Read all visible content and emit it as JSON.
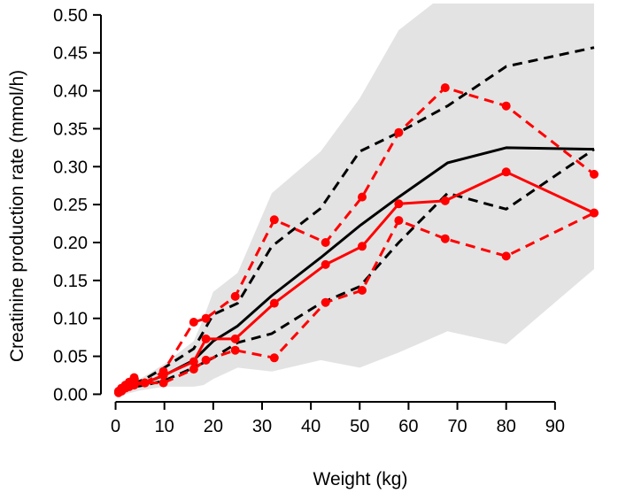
{
  "chart_data": {
    "type": "line",
    "title": "",
    "xlabel": "Weight (kg)",
    "ylabel": "Creatinine production rate (mmol/h)",
    "xlim": [
      -3,
      100
    ],
    "ylim": [
      -0.01,
      0.515
    ],
    "x_ticks": [
      0,
      10,
      20,
      30,
      40,
      50,
      60,
      70,
      80,
      90
    ],
    "y_ticks": [
      0.0,
      0.05,
      0.1,
      0.15,
      0.2,
      0.25,
      0.3,
      0.35,
      0.4,
      0.45,
      0.5
    ],
    "y_tick_labels": [
      "0.00",
      "0.05",
      "0.10",
      "0.15",
      "0.20",
      "0.25",
      "0.30",
      "0.35",
      "0.40",
      "0.45",
      "0.50"
    ],
    "grid": false,
    "legend": "none",
    "colors": {
      "prediction": "#000000",
      "observed": "#ff0000",
      "band": "#e3e3e3"
    },
    "band": {
      "name": "",
      "x": [
        0.8,
        2,
        5,
        10,
        16,
        18,
        20,
        25,
        32,
        42,
        50,
        58,
        68,
        80,
        98
      ],
      "lower": [
        0.0,
        0.0,
        0.005,
        0.01,
        0.01,
        0.012,
        0.02,
        0.035,
        0.03,
        0.045,
        0.035,
        0.055,
        0.083,
        0.066,
        0.165
      ],
      "upper": [
        0.005,
        0.01,
        0.02,
        0.04,
        0.07,
        0.1,
        0.135,
        0.16,
        0.265,
        0.32,
        0.39,
        0.48,
        0.53,
        0.53,
        0.53
      ]
    },
    "series": [
      {
        "role": "predicted-median",
        "style": "solid",
        "color": "#000000",
        "markers": false,
        "x": [
          0.8,
          2,
          4,
          6,
          10,
          16,
          20,
          25,
          32,
          42,
          50,
          58,
          68,
          80,
          98
        ],
        "y": [
          0.003,
          0.006,
          0.01,
          0.015,
          0.025,
          0.045,
          0.07,
          0.09,
          0.13,
          0.18,
          0.222,
          0.26,
          0.305,
          0.325,
          0.323
        ]
      },
      {
        "role": "predicted-upper",
        "style": "dashed",
        "color": "#000000",
        "markers": false,
        "x": [
          0.8,
          2,
          4,
          6,
          10,
          16,
          20,
          25,
          32,
          42,
          50,
          58,
          68,
          80,
          98
        ],
        "y": [
          0.003,
          0.007,
          0.015,
          0.02,
          0.035,
          0.06,
          0.105,
          0.12,
          0.195,
          0.245,
          0.32,
          0.345,
          0.38,
          0.432,
          0.457
        ]
      },
      {
        "role": "predicted-lower",
        "style": "dashed",
        "color": "#000000",
        "markers": false,
        "x": [
          0.8,
          2,
          4,
          6,
          10,
          16,
          20,
          25,
          32,
          42,
          50,
          58,
          68,
          80,
          98
        ],
        "y": [
          0.002,
          0.005,
          0.01,
          0.012,
          0.018,
          0.035,
          0.048,
          0.068,
          0.08,
          0.12,
          0.142,
          0.2,
          0.265,
          0.244,
          0.323
        ]
      },
      {
        "role": "observed-median",
        "style": "solid",
        "color": "#ff0000",
        "markers": true,
        "x": [
          0.6,
          1.2,
          2,
          2.8,
          3.8,
          6,
          9.8,
          16,
          18.5,
          24.5,
          32.5,
          43,
          50.5,
          58,
          67.5,
          80,
          98
        ],
        "y": [
          0.003,
          0.006,
          0.01,
          0.012,
          0.016,
          0.015,
          0.025,
          0.043,
          0.073,
          0.073,
          0.12,
          0.171,
          0.195,
          0.251,
          0.255,
          0.293,
          0.239
        ]
      },
      {
        "role": "observed-upper",
        "style": "dashed",
        "color": "#ff0000",
        "markers": true,
        "x": [
          0.6,
          1.2,
          2,
          2.8,
          3.8,
          6,
          9.8,
          16,
          18.5,
          24.5,
          32.5,
          43,
          50.5,
          58,
          67.5,
          80,
          98
        ],
        "y": [
          0.004,
          0.008,
          0.012,
          0.016,
          0.022,
          0.015,
          0.03,
          0.095,
          0.1,
          0.129,
          0.23,
          0.2,
          0.26,
          0.345,
          0.404,
          0.38,
          0.29
        ]
      },
      {
        "role": "observed-lower",
        "style": "dashed",
        "color": "#ff0000",
        "markers": true,
        "x": [
          0.6,
          1.2,
          2,
          2.8,
          3.8,
          6,
          9.8,
          16,
          18.5,
          24.5,
          32.5,
          43,
          50.5,
          58,
          67.5,
          80,
          98
        ],
        "y": [
          0.002,
          0.004,
          0.008,
          0.01,
          0.012,
          0.015,
          0.015,
          0.033,
          0.045,
          0.058,
          0.048,
          0.121,
          0.137,
          0.229,
          0.205,
          0.182,
          0.239
        ]
      }
    ]
  }
}
